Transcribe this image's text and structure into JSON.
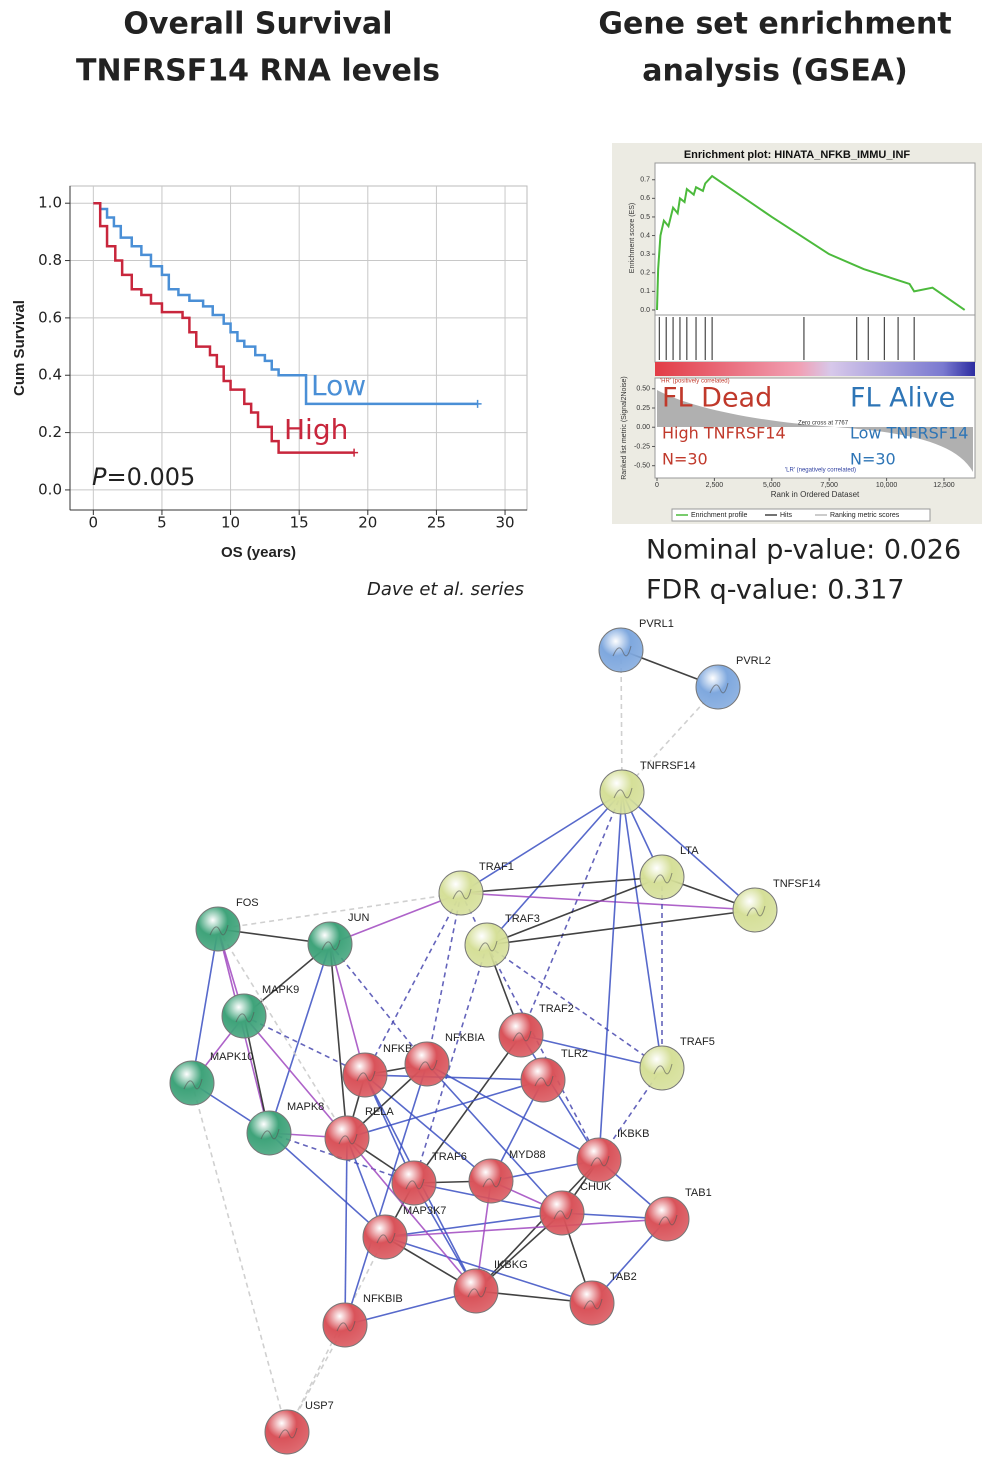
{
  "titles": {
    "left": [
      "Overall Survival",
      "TNFRSF14 RNA levels"
    ],
    "right": [
      "Gene set enrichment",
      "analysis (GSEA)"
    ]
  },
  "chart_data": [
    {
      "type": "line",
      "step": true,
      "xlabel": "OS (years)",
      "ylabel": "Cum Survival",
      "xlim": [
        -1.7,
        31.6
      ],
      "ylim": [
        -0.07,
        1.06
      ],
      "xticks": [
        0,
        5,
        10,
        15,
        20,
        25,
        30
      ],
      "yticks": [
        {
          "value": 0,
          "label": "0.0"
        },
        0.2,
        0.4,
        0.6,
        0.8,
        {
          "value": 1,
          "label": "1.0"
        }
      ],
      "grid": true,
      "series": [
        {
          "name": "Low",
          "color": "#4a8fd6",
          "x": [
            0,
            0.5,
            1,
            1.5,
            2,
            2.8,
            3.5,
            4.2,
            5,
            5.5,
            6.2,
            7,
            8,
            8.7,
            9.5,
            10,
            10.5,
            11,
            11.8,
            12.5,
            13,
            13.5,
            15.5,
            28
          ],
          "values": [
            1,
            0.98,
            0.95,
            0.92,
            0.88,
            0.85,
            0.82,
            0.78,
            0.75,
            0.7,
            0.68,
            0.66,
            0.64,
            0.61,
            0.58,
            0.55,
            0.52,
            0.5,
            0.47,
            0.45,
            0.42,
            0.4,
            0.3,
            0.3
          ]
        },
        {
          "name": "High",
          "color": "#c8263c",
          "x": [
            0,
            0.5,
            1,
            1.6,
            2.1,
            2.8,
            3.5,
            4.2,
            5,
            6.5,
            7,
            7.5,
            8.5,
            9,
            9.5,
            10,
            11,
            11.5,
            12,
            13,
            13.5,
            19
          ],
          "values": [
            1,
            0.92,
            0.85,
            0.8,
            0.75,
            0.7,
            0.68,
            0.65,
            0.62,
            0.6,
            0.55,
            0.5,
            0.47,
            0.43,
            0.38,
            0.35,
            0.3,
            0.27,
            0.22,
            0.17,
            0.13,
            0.13
          ]
        }
      ],
      "p_label": "P",
      "p_value": "=0.005",
      "source": "Dave et al. series"
    },
    {
      "type": "enrichment",
      "title": "Enrichment plot: HINATA_NFKB_IMMU_INF",
      "ylabel": "Enrichment score (ES)",
      "xlabel": "Rank in Ordered Dataset",
      "xlim": [
        -87,
        13850
      ],
      "ylim": [
        -0.027,
        0.79
      ],
      "xticks": [
        0,
        {
          "value": 2500,
          "label": "2,500"
        },
        {
          "value": 5000,
          "label": "5,000"
        },
        {
          "value": 7500,
          "label": "7,500"
        },
        {
          "value": 10000,
          "label": "10,000"
        },
        {
          "value": 12500,
          "label": "12,500"
        }
      ],
      "yticks": [
        {
          "value": 0,
          "label": "0.0"
        },
        0.1,
        0.2,
        0.3,
        0.4,
        0.5,
        0.6,
        0.7
      ],
      "series": [
        {
          "name": "Enrichment profile",
          "color": "#4cba3c",
          "x": [
            0,
            50,
            150,
            300,
            500,
            700,
            900,
            1000,
            1200,
            1300,
            1600,
            1700,
            2000,
            2100,
            2400,
            5000,
            7500,
            9000,
            11000,
            11200,
            12000,
            13400
          ],
          "values": [
            0,
            0.22,
            0.4,
            0.48,
            0.45,
            0.55,
            0.52,
            0.6,
            0.58,
            0.65,
            0.62,
            0.66,
            0.64,
            0.68,
            0.72,
            0.5,
            0.3,
            0.22,
            0.14,
            0.1,
            0.12,
            0
          ]
        }
      ],
      "hits": {
        "name": "Hits",
        "x": [
          100,
          400,
          700,
          1000,
          1300,
          1700,
          2100,
          2400,
          6400,
          8700,
          9200,
          9900,
          10500,
          11200
        ]
      },
      "metric": {
        "name": "Ranking metric scores",
        "ylabel": "Ranked list metric (Signal2Noise)",
        "ylim": [
          -0.66,
          0.64
        ],
        "yticks": [
          {
            "value": 0.5,
            "label": "0.50"
          },
          {
            "value": 0.25,
            "label": "0.25"
          },
          {
            "value": 0,
            "label": "0.00"
          },
          {
            "value": -0.25,
            "label": "-0.25"
          },
          {
            "value": -0.5,
            "label": "-0.50"
          }
        ]
      },
      "annotations": [
        "'HR' (positively correlated)",
        "Zero cross at 7767",
        "'LR' (negatively correlated)"
      ],
      "groups": [
        {
          "label": "FL Dead",
          "detail": "High TNFRSF14",
          "n": "N=30",
          "color": "#c0392b"
        },
        {
          "label": "FL Alive",
          "detail": "Low TNFRSF14",
          "n": "N=30",
          "color": "#2e75b6"
        }
      ]
    }
  ],
  "gsea_stats": [
    "Nominal p-value: 0.026",
    "FDR q-value: 0.317"
  ],
  "network": {
    "nodes": [
      {
        "label": "PVRL1",
        "color": "#7fa8de"
      },
      {
        "label": "PVRL2",
        "color": "#7fa8de"
      },
      {
        "label": "TNFRSF14",
        "color": "#d5df98"
      },
      {
        "label": "LTA",
        "color": "#d5df98"
      },
      {
        "label": "TNFSF14",
        "color": "#d5df98"
      },
      {
        "label": "TRAF1",
        "color": "#d5df98"
      },
      {
        "label": "TRAF3",
        "color": "#d5df98"
      },
      {
        "label": "TRAF2",
        "color": "#d9535a"
      },
      {
        "label": "TLR2",
        "color": "#d9535a"
      },
      {
        "label": "TRAF5",
        "color": "#d5df98"
      },
      {
        "label": "FOS",
        "color": "#3fa37a"
      },
      {
        "label": "JUN",
        "color": "#3fa37a"
      },
      {
        "label": "MAPK9",
        "color": "#3fa37a"
      },
      {
        "label": "MAPK10",
        "color": "#3fa37a"
      },
      {
        "label": "MAPK8",
        "color": "#3fa37a"
      },
      {
        "label": "NFKB1",
        "color": "#d9535a"
      },
      {
        "label": "NFKBIA",
        "color": "#d9535a"
      },
      {
        "label": "RELA",
        "color": "#d9535a"
      },
      {
        "label": "TRAF6",
        "color": "#d9535a"
      },
      {
        "label": "MYD88",
        "color": "#d9535a"
      },
      {
        "label": "IKBKB",
        "color": "#d9535a"
      },
      {
        "label": "MAP3K7",
        "color": "#d9535a"
      },
      {
        "label": "CHUK",
        "color": "#d9535a"
      },
      {
        "label": "TAB1",
        "color": "#d9535a"
      },
      {
        "label": "IKBKG",
        "color": "#d9535a"
      },
      {
        "label": "TAB2",
        "color": "#d9535a"
      },
      {
        "label": "NFKBIB",
        "color": "#d9535a"
      },
      {
        "label": "USP7",
        "color": "#d9535a"
      }
    ]
  }
}
